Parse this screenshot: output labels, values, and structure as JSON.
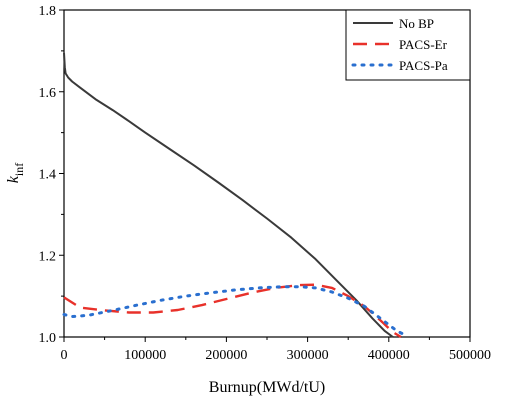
{
  "chart_data": {
    "type": "line",
    "title": "",
    "xlabel": "Burnup(MWd/tU)",
    "ylabel": {
      "main": "k",
      "sub": "inf"
    },
    "xlim": [
      0,
      500000
    ],
    "ylim": [
      1.0,
      1.8
    ],
    "xticks": [
      "0",
      "100000",
      "200000",
      "300000",
      "400000",
      "500000"
    ],
    "yticks": [
      "1.0",
      "1.2",
      "1.4",
      "1.6",
      "1.8"
    ],
    "grid": false,
    "legend_position": "top-right",
    "series": [
      {
        "name": "No BP",
        "color": "#3a3a3a",
        "style": "solid",
        "x": [
          0,
          1000,
          2000,
          5000,
          10000,
          20000,
          40000,
          60000,
          80000,
          100000,
          130000,
          160000,
          190000,
          220000,
          250000,
          280000,
          310000,
          340000,
          360000,
          380000,
          395000,
          405000
        ],
        "y": [
          1.695,
          1.66,
          1.645,
          1.635,
          1.625,
          1.61,
          1.58,
          1.555,
          1.528,
          1.5,
          1.46,
          1.42,
          1.378,
          1.335,
          1.29,
          1.243,
          1.19,
          1.13,
          1.09,
          1.045,
          1.015,
          1.0
        ]
      },
      {
        "name": "PACS-Er",
        "color": "#e8312a",
        "style": "dashed",
        "x": [
          0,
          20000,
          50000,
          80000,
          110000,
          140000,
          170000,
          200000,
          230000,
          260000,
          290000,
          310000,
          330000,
          350000,
          370000,
          390000,
          405000,
          415000
        ],
        "y": [
          1.097,
          1.072,
          1.065,
          1.06,
          1.06,
          1.066,
          1.078,
          1.093,
          1.108,
          1.12,
          1.127,
          1.128,
          1.12,
          1.1,
          1.075,
          1.04,
          1.012,
          1.0
        ]
      },
      {
        "name": "PACS-Pa",
        "color": "#2a6fcf",
        "style": "dotted",
        "x": [
          0,
          10000,
          30000,
          60000,
          90000,
          120000,
          150000,
          180000,
          210000,
          240000,
          270000,
          290000,
          310000,
          330000,
          350000,
          370000,
          390000,
          410000,
          420000
        ],
        "y": [
          1.055,
          1.05,
          1.053,
          1.065,
          1.078,
          1.09,
          1.1,
          1.108,
          1.115,
          1.12,
          1.123,
          1.123,
          1.12,
          1.11,
          1.095,
          1.075,
          1.045,
          1.015,
          1.005
        ]
      }
    ]
  }
}
